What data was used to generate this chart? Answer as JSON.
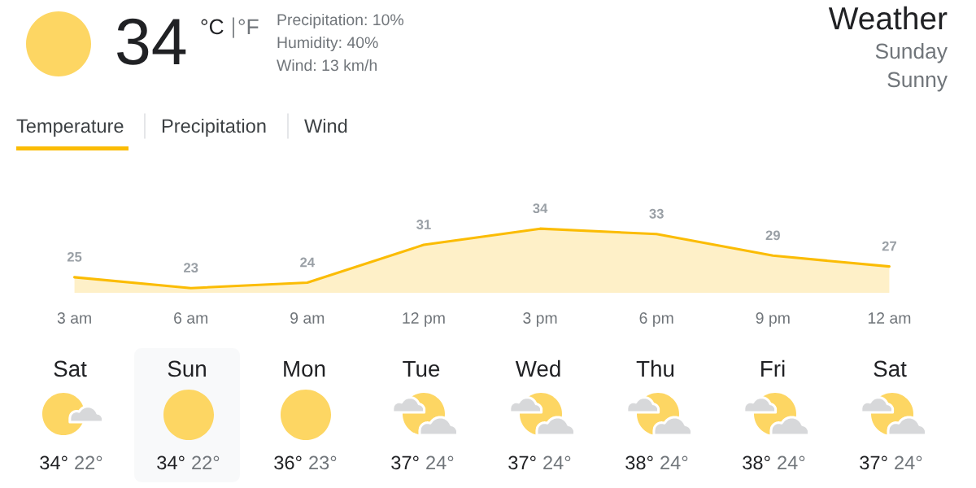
{
  "chart_data": [
    {
      "type": "other",
      "title": "Weather",
      "subtitle": "Sunday",
      "annotations": [
        "Sunny",
        "34",
        "°C",
        "°F",
        "Precipitation: 10%",
        "Humidity: 40%",
        "Wind: 13 km/h",
        "Temperature",
        "Precipitation",
        "Wind"
      ]
    },
    {
      "type": "area",
      "categories": [
        "3 am",
        "6 am",
        "9 am",
        "12 pm",
        "3 pm",
        "6 pm",
        "9 pm",
        "12 am"
      ],
      "values": [
        25,
        23,
        24,
        31,
        34,
        33,
        29,
        27
      ],
      "color": "#fbbc04",
      "data_labels": true,
      "tick_labels": "x"
    },
    {
      "type": "other",
      "categories": [
        "Sat",
        "Sun",
        "Mon",
        "Tue",
        "Wed",
        "Thu",
        "Fri",
        "Sat"
      ],
      "annotations": [
        "34°",
        "22°",
        "34°",
        "22°",
        "36°",
        "23°",
        "37°",
        "24°",
        "37°",
        "24°",
        "38°",
        "24°",
        "38°",
        "24°",
        "37°",
        "24°"
      ]
    }
  ]
}
